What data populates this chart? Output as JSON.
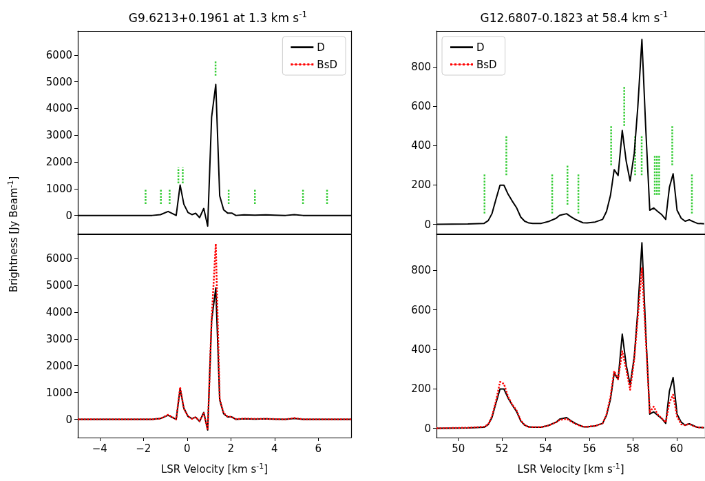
{
  "chart_data": [
    {
      "type": "line",
      "title": "G9.6213+0.1961 at 1.3 km s$^{-1}$",
      "ylabel": "Brightness [Jy Beam$^{-1}$]",
      "xlim": [
        -5,
        7.5
      ],
      "xticks": [
        -4,
        -2,
        0,
        2,
        4,
        6
      ],
      "ylim": [
        -680,
        6900
      ],
      "yticks": [
        0,
        1000,
        2000,
        3000,
        4000,
        5000,
        6000
      ],
      "tick_labels": "y",
      "legend": "top right",
      "x": [
        -5,
        -3,
        -1.6,
        -1.22,
        -0.87,
        -0.5,
        -0.32,
        -0.15,
        0.04,
        0.22,
        0.39,
        0.57,
        0.76,
        0.94,
        1.12,
        1.31,
        1.49,
        1.67,
        1.85,
        2.04,
        2.23,
        2.6,
        3.1,
        3.6,
        4.0,
        4.5,
        4.9,
        5.3,
        6.0,
        7.5
      ],
      "series": [
        {
          "name": "D",
          "color": "#000000",
          "line_style": "solid",
          "values": [
            0,
            0,
            0,
            30,
            150,
            0,
            1140,
            420,
            110,
            30,
            80,
            -80,
            260,
            -400,
            3680,
            4900,
            730,
            210,
            90,
            90,
            0,
            20,
            10,
            20,
            10,
            0,
            30,
            0,
            0,
            0
          ]
        },
        {
          "name": "BsD",
          "color": "#ff0000",
          "line_style": "dotted",
          "values": [
            null,
            null,
            null,
            null,
            null,
            null,
            null,
            null,
            null,
            null,
            null,
            null,
            null,
            null,
            null,
            null,
            null,
            null,
            null,
            null,
            null,
            null,
            null,
            null,
            null,
            null,
            null,
            null,
            null,
            null
          ]
        },
        {
          "color": "#33cc33",
          "line_style": "dotted",
          "x": [
            -1.9,
            -1.9
          ],
          "values": [
            430,
            1000
          ]
        },
        {
          "color": "#33cc33",
          "line_style": "dotted",
          "x": [
            -1.2,
            -1.2
          ],
          "values": [
            430,
            1000
          ]
        },
        {
          "color": "#33cc33",
          "line_style": "dotted",
          "x": [
            -0.8,
            -0.8
          ],
          "values": [
            430,
            1000
          ]
        },
        {
          "color": "#33cc33",
          "line_style": "dotted",
          "x": [
            -0.4,
            -0.4
          ],
          "values": [
            1200,
            1800
          ]
        },
        {
          "color": "#33cc33",
          "line_style": "dotted",
          "x": [
            -0.2,
            -0.2
          ],
          "values": [
            1200,
            1800
          ]
        },
        {
          "color": "#33cc33",
          "line_style": "dotted",
          "x": [
            1.3,
            1.3
          ],
          "values": [
            5230,
            5800
          ]
        },
        {
          "color": "#33cc33",
          "line_style": "dotted",
          "x": [
            1.9,
            1.9
          ],
          "values": [
            430,
            1000
          ]
        },
        {
          "color": "#33cc33",
          "line_style": "dotted",
          "x": [
            3.1,
            3.1
          ],
          "values": [
            430,
            1000
          ]
        },
        {
          "color": "#33cc33",
          "line_style": "dotted",
          "x": [
            5.3,
            5.3
          ],
          "values": [
            430,
            1000
          ]
        },
        {
          "color": "#33cc33",
          "line_style": "dotted",
          "x": [
            6.4,
            6.4
          ],
          "values": [
            430,
            1000
          ]
        }
      ]
    },
    {
      "type": "line",
      "xlabel": "LSR Velocity [km s$^{-1}$]",
      "xlim": [
        -5,
        7.5
      ],
      "xticks": [
        -4,
        -2,
        0,
        2,
        4,
        6
      ],
      "ylim": [
        -680,
        6900
      ],
      "yticks": [
        0,
        1000,
        2000,
        3000,
        4000,
        5000,
        6000
      ],
      "x": [
        -5,
        -3,
        -1.6,
        -1.22,
        -0.87,
        -0.5,
        -0.32,
        -0.15,
        0.04,
        0.22,
        0.39,
        0.57,
        0.76,
        0.94,
        1.12,
        1.31,
        1.49,
        1.67,
        1.85,
        2.04,
        2.23,
        2.6,
        3.1,
        3.6,
        4.0,
        4.5,
        4.9,
        5.3,
        6.0,
        7.5
      ],
      "series": [
        {
          "color": "#000000",
          "line_style": "solid",
          "values": [
            0,
            0,
            0,
            30,
            150,
            0,
            1140,
            420,
            110,
            30,
            80,
            -80,
            260,
            -400,
            3680,
            4900,
            730,
            210,
            90,
            90,
            0,
            20,
            10,
            20,
            10,
            0,
            30,
            0,
            0,
            0
          ]
        },
        {
          "color": "#ff0000",
          "line_style": "dotted",
          "values": [
            0,
            0,
            0,
            30,
            170,
            0,
            1200,
            400,
            110,
            20,
            80,
            -60,
            230,
            -400,
            3730,
            6550,
            760,
            230,
            110,
            90,
            10,
            30,
            20,
            20,
            10,
            0,
            50,
            0,
            0,
            0
          ]
        }
      ]
    },
    {
      "type": "line",
      "title": "G12.6807-0.1823 at 58.4 km s$^{-1}$",
      "xlim": [
        49,
        61.3
      ],
      "xticks": [
        50,
        52,
        54,
        56,
        58,
        60
      ],
      "ylim": [
        -47,
        982
      ],
      "yticks": [
        0,
        200,
        400,
        600,
        800
      ],
      "tick_labels": "y",
      "legend": "top left",
      "x": [
        49,
        50.44,
        51.18,
        51.37,
        51.54,
        51.73,
        51.91,
        52.09,
        52.28,
        52.47,
        52.67,
        52.86,
        53.04,
        53.23,
        53.41,
        53.8,
        54.12,
        54.48,
        54.64,
        54.96,
        55.15,
        55.36,
        55.71,
        55.9,
        56.27,
        56.61,
        56.79,
        56.97,
        57.14,
        57.32,
        57.51,
        57.69,
        57.87,
        58.06,
        58.22,
        58.41,
        58.58,
        58.77,
        58.95,
        59.13,
        59.32,
        59.5,
        59.67,
        59.84,
        60.02,
        60.21,
        60.39,
        60.58,
        60.76,
        60.95,
        61.26
      ],
      "series": [
        {
          "name": "D",
          "color": "#000000",
          "line_style": "solid",
          "values": [
            0,
            2,
            5,
            19,
            54,
            130,
            199,
            199,
            153,
            118,
            84,
            37,
            16,
            7,
            5,
            5,
            14,
            31,
            46,
            54,
            39,
            25,
            8,
            7,
            12,
            25,
            66,
            147,
            278,
            248,
            477,
            321,
            220,
            362,
            593,
            939,
            501,
            72,
            83,
            66,
            49,
            25,
            188,
            257,
            72,
            31,
            16,
            23,
            14,
            5,
            3
          ]
        },
        {
          "name": "BsD",
          "color": "#ff0000",
          "line_style": "dotted",
          "values": [
            null,
            null,
            null,
            null,
            null,
            null,
            null,
            null,
            null,
            null,
            null,
            null,
            null,
            null,
            null,
            null,
            null,
            null,
            null,
            null,
            null,
            null,
            null,
            null,
            null,
            null,
            null,
            null,
            null,
            null,
            null,
            null,
            null,
            null,
            null,
            null,
            null,
            null,
            null,
            null,
            null,
            null,
            null,
            null,
            null,
            null,
            null,
            null,
            null,
            null,
            null
          ]
        },
        {
          "color": "#33cc33",
          "line_style": "dotted",
          "x": [
            51.2,
            51.2
          ],
          "values": [
            55,
            255
          ]
        },
        {
          "color": "#33cc33",
          "line_style": "dotted",
          "x": [
            52.2,
            52.2
          ],
          "values": [
            250,
            450
          ]
        },
        {
          "color": "#33cc33",
          "line_style": "dotted",
          "x": [
            54.3,
            54.3
          ],
          "values": [
            55,
            255
          ]
        },
        {
          "color": "#33cc33",
          "line_style": "dotted",
          "x": [
            55.0,
            55.0
          ],
          "values": [
            100,
            300
          ]
        },
        {
          "color": "#33cc33",
          "line_style": "dotted",
          "x": [
            55.5,
            55.5
          ],
          "values": [
            55,
            255
          ]
        },
        {
          "color": "#33cc33",
          "line_style": "dotted",
          "x": [
            57.0,
            57.0
          ],
          "values": [
            300,
            500
          ]
        },
        {
          "color": "#33cc33",
          "line_style": "dotted",
          "x": [
            57.6,
            57.6
          ],
          "values": [
            500,
            700
          ]
        },
        {
          "color": "#33cc33",
          "line_style": "dotted",
          "x": [
            58.1,
            58.1
          ],
          "values": [
            250,
            450
          ]
        },
        {
          "color": "#33cc33",
          "line_style": "dotted",
          "x": [
            58.4,
            58.4
          ],
          "values": [
            250,
            450
          ]
        },
        {
          "color": "#33cc33",
          "line_style": "dotted",
          "x": [
            59.0,
            59.0
          ],
          "values": [
            150,
            350
          ]
        },
        {
          "color": "#33cc33",
          "line_style": "dotted",
          "x": [
            59.1,
            59.1
          ],
          "values": [
            150,
            350
          ]
        },
        {
          "color": "#33cc33",
          "line_style": "dotted",
          "x": [
            59.2,
            59.2
          ],
          "values": [
            150,
            350
          ]
        },
        {
          "color": "#33cc33",
          "line_style": "dotted",
          "x": [
            59.8,
            59.8
          ],
          "values": [
            300,
            500
          ]
        },
        {
          "color": "#33cc33",
          "line_style": "dotted",
          "x": [
            60.7,
            60.7
          ],
          "values": [
            55,
            255
          ]
        }
      ]
    },
    {
      "type": "line",
      "xlabel": "LSR Velocity [km s$^{-1}$]",
      "xlim": [
        49,
        61.3
      ],
      "xticks": [
        50,
        52,
        54,
        56,
        58,
        60
      ],
      "ylim": [
        -47,
        982
      ],
      "yticks": [
        0,
        200,
        400,
        600,
        800
      ],
      "x": [
        49,
        50.44,
        51.18,
        51.37,
        51.54,
        51.73,
        51.91,
        52.09,
        52.28,
        52.47,
        52.67,
        52.86,
        53.04,
        53.23,
        53.41,
        53.8,
        54.12,
        54.48,
        54.64,
        54.96,
        55.15,
        55.36,
        55.71,
        55.9,
        56.27,
        56.61,
        56.79,
        56.97,
        57.14,
        57.32,
        57.51,
        57.69,
        57.87,
        58.06,
        58.22,
        58.41,
        58.58,
        58.77,
        58.95,
        59.13,
        59.32,
        59.5,
        59.67,
        59.84,
        60.02,
        60.21,
        60.39,
        60.58,
        60.76,
        60.95,
        61.26
      ],
      "series": [
        {
          "color": "#000000",
          "line_style": "solid",
          "values": [
            0,
            2,
            5,
            19,
            54,
            130,
            199,
            199,
            153,
            118,
            84,
            37,
            16,
            7,
            5,
            5,
            14,
            31,
            46,
            54,
            39,
            25,
            8,
            7,
            12,
            25,
            66,
            147,
            278,
            248,
            477,
            321,
            220,
            362,
            593,
            939,
            501,
            72,
            83,
            66,
            49,
            25,
            188,
            257,
            72,
            31,
            16,
            23,
            14,
            5,
            3
          ]
        },
        {
          "color": "#ff0000",
          "line_style": "dotted",
          "values": [
            0,
            3,
            8,
            20,
            60,
            140,
            235,
            225,
            160,
            120,
            90,
            40,
            16,
            7,
            6,
            6,
            14,
            30,
            42,
            48,
            36,
            22,
            8,
            8,
            12,
            25,
            70,
            160,
            290,
            250,
            390,
            300,
            195,
            350,
            560,
            810,
            470,
            80,
            110,
            70,
            50,
            30,
            130,
            170,
            60,
            20,
            16,
            22,
            12,
            5,
            4
          ]
        }
      ]
    }
  ]
}
